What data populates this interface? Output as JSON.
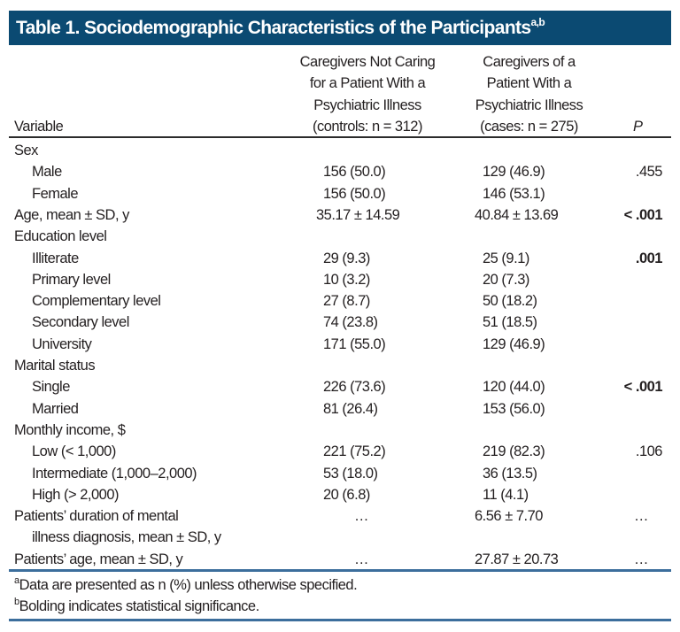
{
  "title": {
    "text": "Table 1. Sociodemographic Characteristics of the Participants",
    "superscript": "a,b",
    "background_color": "#0b4a72"
  },
  "columns": {
    "variable": "Variable",
    "controls": [
      "Caregivers Not Caring",
      "for a Patient With a",
      "Psychiatric Illness",
      "(controls: n = 312)"
    ],
    "cases": [
      "Caregivers of a",
      "Patient With a",
      "Psychiatric Illness",
      "(cases: n = 275)"
    ],
    "p": "P"
  },
  "rows": [
    {
      "label": "Sex",
      "indent": false,
      "controls": "",
      "cases": "",
      "p": "",
      "p_bold": false
    },
    {
      "label": "Male",
      "indent": true,
      "controls": "156 (50.0)",
      "cases": "129 (46.9)",
      "p": ".455",
      "p_bold": false
    },
    {
      "label": "Female",
      "indent": true,
      "controls": "156 (50.0)",
      "cases": "146 (53.1)",
      "p": "",
      "p_bold": false
    },
    {
      "label": "Age, mean ± SD, y",
      "indent": false,
      "controls": "35.17 ± 14.59",
      "cases": "40.84 ± 13.69",
      "p": "< .001",
      "p_bold": true
    },
    {
      "label": "Education level",
      "indent": false,
      "controls": "",
      "cases": "",
      "p": "",
      "p_bold": false
    },
    {
      "label": "Illiterate",
      "indent": true,
      "controls": "29 (9.3)",
      "cases": "25 (9.1)",
      "p": ".001",
      "p_bold": true
    },
    {
      "label": "Primary level",
      "indent": true,
      "controls": "10 (3.2)",
      "cases": "20 (7.3)",
      "p": "",
      "p_bold": false
    },
    {
      "label": "Complementary level",
      "indent": true,
      "controls": "27 (8.7)",
      "cases": "50 (18.2)",
      "p": "",
      "p_bold": false
    },
    {
      "label": "Secondary level",
      "indent": true,
      "controls": "74 (23.8)",
      "cases": "51 (18.5)",
      "p": "",
      "p_bold": false
    },
    {
      "label": "University",
      "indent": true,
      "controls": "171 (55.0)",
      "cases": "129 (46.9)",
      "p": "",
      "p_bold": false
    },
    {
      "label": "Marital status",
      "indent": false,
      "controls": "",
      "cases": "",
      "p": "",
      "p_bold": false
    },
    {
      "label": "Single",
      "indent": true,
      "controls": "226 (73.6)",
      "cases": "120 (44.0)",
      "p": "< .001",
      "p_bold": true
    },
    {
      "label": "Married",
      "indent": true,
      "controls": "81 (26.4)",
      "cases": "153 (56.0)",
      "p": "",
      "p_bold": false
    },
    {
      "label": "Monthly income, $",
      "indent": false,
      "controls": "",
      "cases": "",
      "p": "",
      "p_bold": false
    },
    {
      "label": "Low (< 1,000)",
      "indent": true,
      "controls": "221 (75.2)",
      "cases": "219 (82.3)",
      "p": ".106",
      "p_bold": false
    },
    {
      "label": "Intermediate (1,000–2,000)",
      "indent": true,
      "controls": "53 (18.0)",
      "cases": "36 (13.5)",
      "p": "",
      "p_bold": false
    },
    {
      "label": "High (> 2,000)",
      "indent": true,
      "controls": "20 (6.8)",
      "cases": "11 (4.1)",
      "p": "",
      "p_bold": false
    },
    {
      "label": "Patients’ duration of mental",
      "indent": false,
      "controls": "…",
      "cases": "6.56 ± 7.70",
      "p": "…",
      "p_bold": false
    },
    {
      "label": "illness diagnosis, mean ± SD, y",
      "indent": true,
      "controls": "",
      "cases": "",
      "p": "",
      "p_bold": false
    },
    {
      "label": "Patients’ age, mean ± SD, y",
      "indent": false,
      "controls": "…",
      "cases": "27.87 ± 20.73",
      "p": "…",
      "p_bold": false
    }
  ],
  "footnotes": [
    {
      "mark": "a",
      "text": "Data are presented as n (%) unless otherwise specified."
    },
    {
      "mark": "b",
      "text": "Bolding indicates statistical significance."
    }
  ]
}
